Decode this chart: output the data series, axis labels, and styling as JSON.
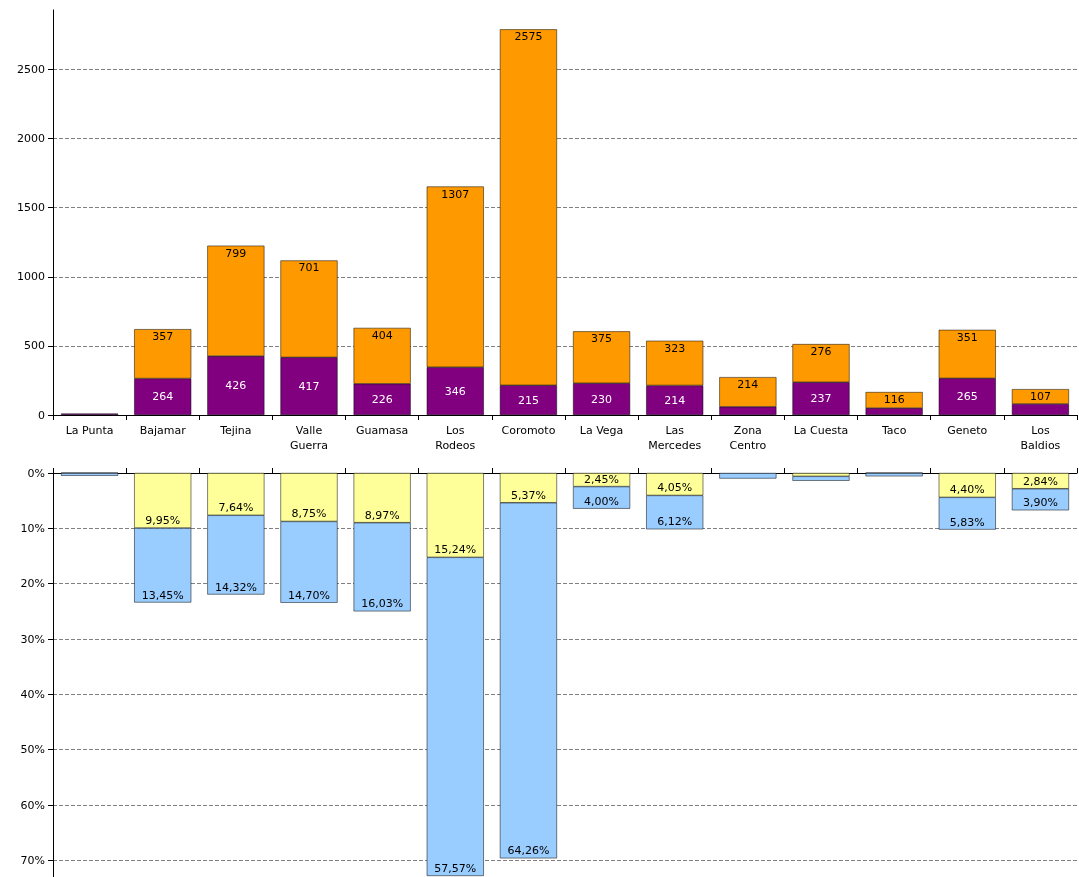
{
  "chart_data": [
    {
      "type": "bar",
      "stacked": true,
      "grid": "y",
      "data_labels": false,
      "categories": [
        "La Punta",
        "Bajamar",
        "Tejina",
        "Valle Guerra",
        "Guamasa",
        "Los Rodeos",
        "Coromoto",
        "La Vega",
        "Las Mercedes",
        "Zona Centro",
        "La Cuesta",
        "Taco",
        "Geneto",
        "Los Baldios"
      ],
      "ylim": [
        0,
        2930
      ],
      "yticks": [
        0,
        500,
        1000,
        1500,
        2000,
        2500
      ],
      "series": [
        {
          "color": "#800080",
          "values": [
            10,
            264,
            426,
            417,
            226,
            346,
            215,
            230,
            214,
            60,
            237,
            50,
            265,
            80
          ],
          "value_labels": [
            null,
            "264",
            "426",
            "417",
            "226",
            "346",
            "215",
            "230",
            "214",
            null,
            "237",
            null,
            "265",
            null
          ]
        },
        {
          "color": "#ff9900",
          "values": [
            null,
            357,
            799,
            701,
            404,
            1307,
            2575,
            375,
            323,
            214,
            276,
            116,
            351,
            107
          ],
          "value_labels": [
            null,
            "357",
            "799",
            "701",
            "404",
            "1307",
            "2575",
            "375",
            "323",
            "214",
            "276",
            "116",
            "351",
            "107"
          ]
        }
      ]
    },
    {
      "type": "bar",
      "stacked": true,
      "grid": "y",
      "tick_labels": "y",
      "categories": [
        null,
        null,
        null,
        null,
        null,
        null,
        null,
        null,
        null,
        null,
        null,
        null,
        null,
        null
      ],
      "ylim": [
        73,
        0
      ],
      "yticks": [
        {
          "value": 0,
          "label": "0%"
        },
        {
          "value": 10,
          "label": "10%"
        },
        {
          "value": 20,
          "label": "20%"
        },
        {
          "value": 30,
          "label": "30%"
        },
        {
          "value": 40,
          "label": "40%"
        },
        {
          "value": 50,
          "label": "50%"
        },
        {
          "value": 60,
          "label": "60%"
        },
        {
          "value": 70,
          "label": "70%"
        }
      ],
      "series": [
        {
          "color": "#ffff99",
          "values": [
            0,
            9.95,
            7.64,
            8.75,
            8.97,
            15.24,
            5.37,
            2.45,
            4.05,
            null,
            0.6,
            0,
            4.4,
            2.84
          ],
          "value_labels": [
            null,
            "9,95%",
            "7,64%",
            "8,75%",
            "8,97%",
            "15,24%",
            "5,37%",
            "2,45%",
            "4,05%",
            null,
            null,
            null,
            "4,40%",
            "2,84%"
          ]
        },
        {
          "color": "#99ccff",
          "values": [
            0.5,
            13.45,
            14.32,
            14.7,
            16.03,
            57.57,
            64.26,
            4.0,
            6.12,
            1.0,
            0.8,
            0.6,
            5.83,
            3.9
          ],
          "value_labels": [
            null,
            "13,45%",
            "14,32%",
            "14,70%",
            "16,03%",
            "57,57%",
            "64,26%",
            "4,00%",
            "6,12%",
            null,
            null,
            null,
            "5,83%",
            "3,90%"
          ]
        }
      ]
    }
  ]
}
